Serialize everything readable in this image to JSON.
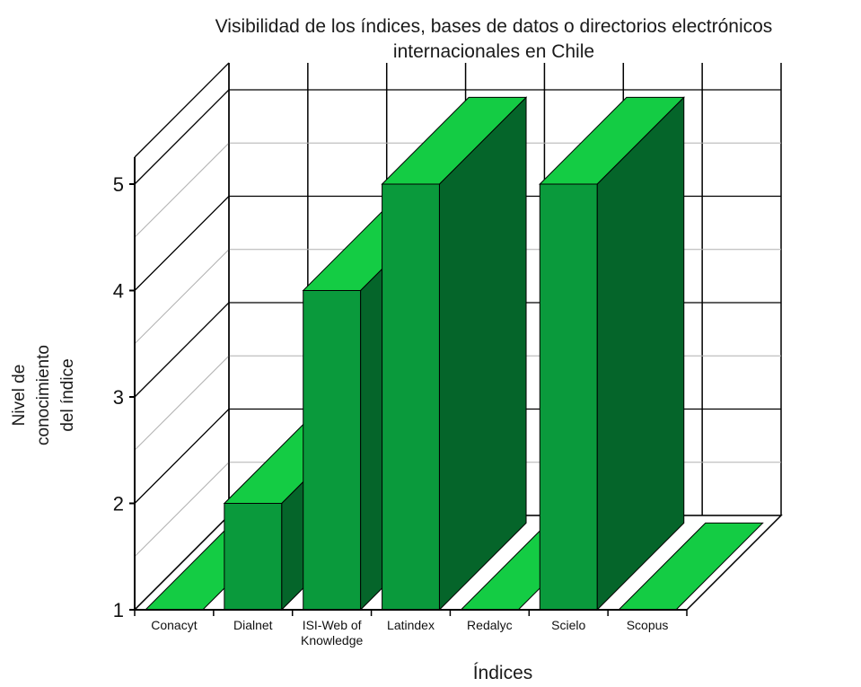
{
  "chart_data": {
    "type": "bar",
    "title_lines": [
      "Visibilidad de los índices, bases de datos o directorios electrónicos",
      "internacionales en Chile"
    ],
    "ylabel_lines": [
      "Nivel de",
      "conocimiento",
      "del índice"
    ],
    "xlabel": "Índices",
    "categories": [
      "Conacyt",
      "Dialnet",
      "ISI-Web of Knowledge",
      "Latindex",
      "Redalyc",
      "Scielo",
      "Scopus"
    ],
    "category_lines": [
      [
        "Conacyt"
      ],
      [
        "Dialnet"
      ],
      [
        "ISI-Web of",
        "Knowledge"
      ],
      [
        "Latindex"
      ],
      [
        "Redalyc"
      ],
      [
        "Scielo"
      ],
      [
        "Scopus"
      ]
    ],
    "values": [
      1,
      2,
      4,
      5,
      1,
      5,
      1
    ],
    "ylim": [
      1,
      5
    ],
    "yticks": [
      1,
      2,
      3,
      4,
      5
    ],
    "grid": true,
    "three_d": true,
    "colors": {
      "bar_front": "#0a9a3c",
      "bar_side": "#05652a",
      "bar_top": "#14cc44",
      "grid": "#b0b0b0",
      "axis": "#000000"
    }
  }
}
